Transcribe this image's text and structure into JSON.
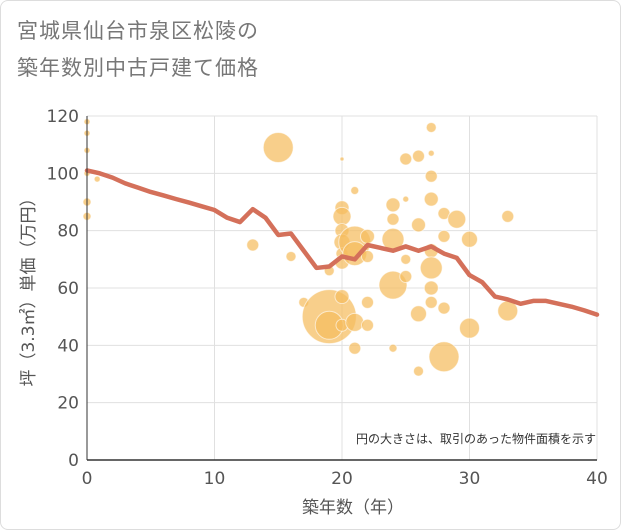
{
  "header": {
    "title_line1": "宮城県仙台市泉区松陵の",
    "title_line2": "築年数別中古戸建て価格"
  },
  "colors": {
    "line": "#d4705a",
    "bubble": "#f5bd5e",
    "bubble_edge": "#f0ad3d",
    "grid": "#e0e0e0",
    "axis": "#333333"
  },
  "chart_data": {
    "type": "scatter",
    "title": "宮城県仙台市泉区松陵の築年数別中古戸建て価格",
    "xlabel": "築年数（年）",
    "ylabel": "坪（3.3㎡）単価（万円）",
    "xlim": [
      0,
      40
    ],
    "ylim": [
      0,
      120
    ],
    "xticks": [
      0,
      10,
      20,
      30,
      40
    ],
    "yticks": [
      0,
      20,
      40,
      60,
      80,
      100,
      120
    ],
    "grid": true,
    "note": "円の大きさは、取引のあった物件面積を示す",
    "line": {
      "x": [
        0,
        1,
        2,
        3,
        4,
        5,
        6,
        7,
        8,
        9,
        10,
        11,
        12,
        13,
        14,
        15,
        16,
        17,
        18,
        19,
        20,
        21,
        22,
        23,
        24,
        25,
        26,
        27,
        28,
        29,
        30,
        31,
        32,
        33,
        34,
        35,
        36,
        37,
        38,
        39,
        40
      ],
      "y": [
        101,
        100,
        98.5,
        96.5,
        95,
        93.5,
        92.3,
        91,
        89.8,
        88.5,
        87.2,
        84.5,
        83,
        87.5,
        84.5,
        78.5,
        79,
        73,
        67,
        67.5,
        71,
        70,
        75,
        74,
        73,
        74.5,
        73,
        74.5,
        72,
        70.5,
        64.5,
        62,
        57,
        56,
        54.5,
        55.5,
        55.5,
        54.5,
        53.5,
        52.2,
        50.7
      ]
    },
    "bubbles": [
      {
        "x": 0,
        "y": 118,
        "s": 3
      },
      {
        "x": 0,
        "y": 114,
        "s": 3
      },
      {
        "x": 0,
        "y": 108,
        "s": 3
      },
      {
        "x": 0,
        "y": 100,
        "s": 3
      },
      {
        "x": 0,
        "y": 90,
        "s": 4
      },
      {
        "x": 0,
        "y": 85,
        "s": 4
      },
      {
        "x": 0.8,
        "y": 98,
        "s": 3
      },
      {
        "x": 13,
        "y": 75,
        "s": 6
      },
      {
        "x": 15,
        "y": 109,
        "s": 15
      },
      {
        "x": 16,
        "y": 71,
        "s": 5
      },
      {
        "x": 17,
        "y": 55,
        "s": 5
      },
      {
        "x": 19,
        "y": 66,
        "s": 5
      },
      {
        "x": 19,
        "y": 50,
        "s": 27
      },
      {
        "x": 19,
        "y": 47,
        "s": 14
      },
      {
        "x": 20,
        "y": 105,
        "s": 2
      },
      {
        "x": 20,
        "y": 88,
        "s": 7
      },
      {
        "x": 20,
        "y": 85,
        "s": 9
      },
      {
        "x": 20,
        "y": 80,
        "s": 7
      },
      {
        "x": 20,
        "y": 76,
        "s": 8
      },
      {
        "x": 20,
        "y": 72,
        "s": 6
      },
      {
        "x": 20,
        "y": 69,
        "s": 7
      },
      {
        "x": 20,
        "y": 57,
        "s": 7
      },
      {
        "x": 20,
        "y": 47,
        "s": 6
      },
      {
        "x": 21,
        "y": 94,
        "s": 4
      },
      {
        "x": 21,
        "y": 76,
        "s": 16
      },
      {
        "x": 21,
        "y": 72,
        "s": 12
      },
      {
        "x": 21,
        "y": 48,
        "s": 9
      },
      {
        "x": 21,
        "y": 39,
        "s": 6
      },
      {
        "x": 22,
        "y": 78,
        "s": 7
      },
      {
        "x": 22,
        "y": 71,
        "s": 6
      },
      {
        "x": 22,
        "y": 55,
        "s": 6
      },
      {
        "x": 22,
        "y": 47,
        "s": 6
      },
      {
        "x": 24,
        "y": 89,
        "s": 7
      },
      {
        "x": 24,
        "y": 84,
        "s": 6
      },
      {
        "x": 24,
        "y": 77,
        "s": 11
      },
      {
        "x": 24,
        "y": 61,
        "s": 14
      },
      {
        "x": 24,
        "y": 39,
        "s": 4
      },
      {
        "x": 25,
        "y": 105,
        "s": 6
      },
      {
        "x": 25,
        "y": 91,
        "s": 3
      },
      {
        "x": 25,
        "y": 70,
        "s": 5
      },
      {
        "x": 25,
        "y": 64,
        "s": 6
      },
      {
        "x": 26,
        "y": 106,
        "s": 6
      },
      {
        "x": 26,
        "y": 82,
        "s": 7
      },
      {
        "x": 26,
        "y": 51,
        "s": 8
      },
      {
        "x": 26,
        "y": 31,
        "s": 5
      },
      {
        "x": 27,
        "y": 116,
        "s": 5
      },
      {
        "x": 27,
        "y": 107,
        "s": 3
      },
      {
        "x": 27,
        "y": 99,
        "s": 6
      },
      {
        "x": 27,
        "y": 91,
        "s": 7
      },
      {
        "x": 27,
        "y": 73,
        "s": 7
      },
      {
        "x": 27,
        "y": 67,
        "s": 11
      },
      {
        "x": 27,
        "y": 60,
        "s": 7
      },
      {
        "x": 27,
        "y": 55,
        "s": 6
      },
      {
        "x": 28,
        "y": 86,
        "s": 6
      },
      {
        "x": 28,
        "y": 78,
        "s": 6
      },
      {
        "x": 28,
        "y": 53,
        "s": 6
      },
      {
        "x": 28,
        "y": 36,
        "s": 15
      },
      {
        "x": 29,
        "y": 84,
        "s": 9
      },
      {
        "x": 30,
        "y": 77,
        "s": 8
      },
      {
        "x": 30,
        "y": 46,
        "s": 10
      },
      {
        "x": 33,
        "y": 85,
        "s": 6
      },
      {
        "x": 33,
        "y": 52,
        "s": 10
      }
    ]
  }
}
